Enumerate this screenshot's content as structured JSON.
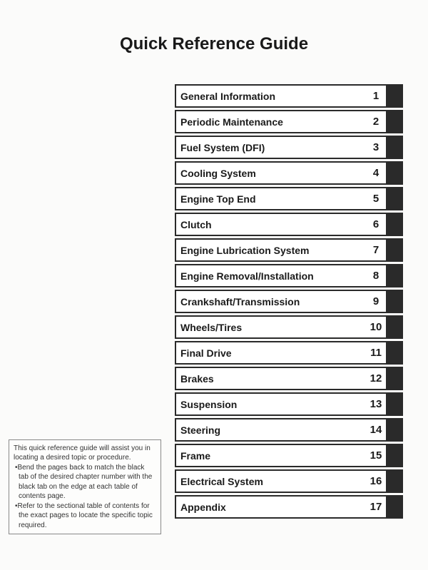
{
  "title": "Quick Reference Guide",
  "chapters": [
    {
      "label": "General Information",
      "number": "1"
    },
    {
      "label": "Periodic Maintenance",
      "number": "2"
    },
    {
      "label": "Fuel System (DFI)",
      "number": "3"
    },
    {
      "label": "Cooling System",
      "number": "4"
    },
    {
      "label": "Engine Top End",
      "number": "5"
    },
    {
      "label": "Clutch",
      "number": "6"
    },
    {
      "label": "Engine Lubrication System",
      "number": "7"
    },
    {
      "label": "Engine Removal/Installation",
      "number": "8"
    },
    {
      "label": "Crankshaft/Transmission",
      "number": "9"
    },
    {
      "label": "Wheels/Tires",
      "number": "10"
    },
    {
      "label": "Final Drive",
      "number": "11"
    },
    {
      "label": "Brakes",
      "number": "12"
    },
    {
      "label": "Suspension",
      "number": "13"
    },
    {
      "label": "Steering",
      "number": "14"
    },
    {
      "label": "Frame",
      "number": "15"
    },
    {
      "label": "Electrical System",
      "number": "16"
    },
    {
      "label": "Appendix",
      "number": "17"
    }
  ],
  "info": {
    "intro": "This quick reference guide will assist you in locating a desired topic or procedure.",
    "b1": "•Bend the pages back to match the black tab of the desired chapter number with the black tab on the edge at each table of contents page.",
    "b2": "•Refer to the sectional table of contents for the exact pages to locate the specific topic required."
  }
}
